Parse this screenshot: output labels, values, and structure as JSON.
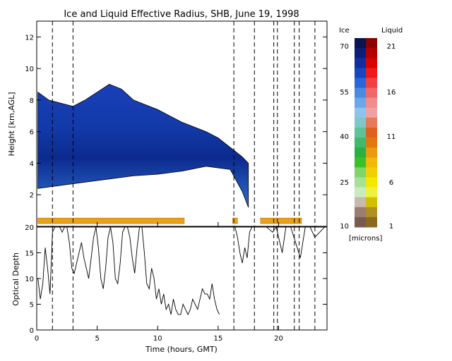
{
  "chart_data": [
    {
      "type": "heatmap",
      "title": "Ice and Liquid Effective Radius, SHB, June 19, 1998",
      "xlabel": "",
      "ylabel": "Height [km,AGL]",
      "xlim": [
        0,
        24
      ],
      "ylim": [
        0,
        13
      ],
      "yticks": [
        2,
        4,
        6,
        8,
        10,
        12
      ],
      "ytick_labels": [
        "2",
        "4",
        "6",
        "8",
        "10",
        "12"
      ],
      "xticks": [
        0,
        5,
        10,
        15,
        20
      ],
      "dashed_lines_x": [
        1.3,
        3.0,
        16.3,
        18.0,
        19.6,
        19.9,
        21.3,
        21.7,
        23.0
      ],
      "ice_cloud": {
        "top_km": [
          [
            0.1,
            8.5
          ],
          [
            1,
            8.0
          ],
          [
            2,
            7.8
          ],
          [
            3,
            7.6
          ],
          [
            4,
            8.0
          ],
          [
            5,
            8.5
          ],
          [
            6,
            9.0
          ],
          [
            7,
            8.7
          ],
          [
            8,
            8.0
          ],
          [
            9,
            7.7
          ],
          [
            10,
            7.4
          ],
          [
            11,
            7.0
          ],
          [
            12,
            6.6
          ],
          [
            13,
            6.3
          ],
          [
            14,
            6.0
          ],
          [
            15,
            5.6
          ],
          [
            16,
            5.0
          ],
          [
            17,
            4.4
          ],
          [
            17.5,
            4.0
          ]
        ],
        "base_km": [
          [
            0.1,
            2.4
          ],
          [
            2,
            2.6
          ],
          [
            4,
            2.8
          ],
          [
            6,
            3.0
          ],
          [
            8,
            3.2
          ],
          [
            10,
            3.3
          ],
          [
            12,
            3.5
          ],
          [
            14,
            3.8
          ],
          [
            16,
            3.6
          ],
          [
            17,
            2.2
          ],
          [
            17.5,
            1.2
          ]
        ]
      },
      "liquid_layer": {
        "height_km": 0.35,
        "segments": [
          [
            0.1,
            12.2
          ],
          [
            16.2,
            16.6
          ],
          [
            18.5,
            21.9
          ]
        ]
      },
      "colorbar": {
        "ice_label": "Ice",
        "liquid_label": "Liquid",
        "ice_ticks": [
          "70",
          "55",
          "40",
          "25",
          "10"
        ],
        "liquid_ticks": [
          "21",
          "16",
          "11",
          "6",
          "1"
        ],
        "unit": "[microns]"
      }
    },
    {
      "type": "line",
      "title": "",
      "xlabel": "Time (hours, GMT)",
      "ylabel": "Optical Depth",
      "xlim": [
        0,
        24
      ],
      "ylim": [
        0,
        20
      ],
      "xticks": [
        0,
        5,
        10,
        15,
        20
      ],
      "xtick_labels": [
        "0",
        "5",
        "10",
        "15",
        "20"
      ],
      "yticks": [
        0,
        5,
        10,
        15,
        20
      ],
      "ytick_labels": [
        "0",
        "5",
        "10",
        "15",
        "20"
      ],
      "series": [
        {
          "name": "",
          "x": [
            0.1,
            0.3,
            0.5,
            0.7,
            0.9,
            1.1,
            1.3,
            1.5,
            1.7,
            1.9,
            2.1,
            2.3,
            2.5,
            2.7,
            2.9,
            3.1,
            3.3,
            3.5,
            3.7,
            3.9,
            4.1,
            4.3,
            4.5,
            4.7,
            4.9,
            5.1,
            5.3,
            5.5,
            5.7,
            5.9,
            6.1,
            6.3,
            6.5,
            6.7,
            6.9,
            7.1,
            7.3,
            7.5,
            7.7,
            7.9,
            8.1,
            8.3,
            8.5,
            8.7,
            8.9,
            9.1,
            9.3,
            9.5,
            9.7,
            9.9,
            10.1,
            10.3,
            10.5,
            10.7,
            10.9,
            11.1,
            11.3,
            11.5,
            11.7,
            11.9,
            12.1,
            12.3,
            12.5,
            12.7,
            12.9,
            13.1,
            13.3,
            13.5,
            13.7,
            13.9,
            14.1,
            14.3,
            14.5,
            14.7,
            14.9,
            15.1
          ],
          "values": [
            10,
            6,
            9,
            16,
            12,
            7,
            19,
            20,
            20,
            20,
            19,
            20,
            20,
            17,
            12,
            11,
            13,
            15,
            17,
            14,
            12,
            10,
            14,
            18,
            20,
            16,
            10,
            8,
            12,
            18,
            20,
            17,
            10,
            9,
            13,
            19,
            20,
            20,
            18,
            14,
            11,
            16,
            20,
            20,
            15,
            9,
            8,
            12,
            10,
            6,
            8,
            5,
            7,
            4,
            5,
            3,
            6,
            4,
            3,
            3,
            5,
            4,
            3,
            4,
            6,
            5,
            4,
            6,
            8,
            7,
            7,
            6,
            9,
            6,
            4,
            3
          ]
        },
        {
          "name": "",
          "x": [
            16.4,
            16.6,
            16.8,
            17.0,
            17.2,
            17.4,
            17.6,
            17.8,
            18.0,
            18.5,
            19.0,
            19.5,
            19.8,
            20.0,
            20.3,
            20.6,
            21.0,
            21.4,
            21.8,
            22.2,
            22.6,
            23.0,
            23.4,
            23.8
          ],
          "values": [
            20,
            18,
            15,
            13,
            16,
            14,
            19,
            20,
            20,
            20,
            20,
            19,
            20,
            18,
            15,
            20,
            20,
            17,
            14,
            20,
            20,
            18,
            19,
            20
          ]
        }
      ]
    }
  ]
}
